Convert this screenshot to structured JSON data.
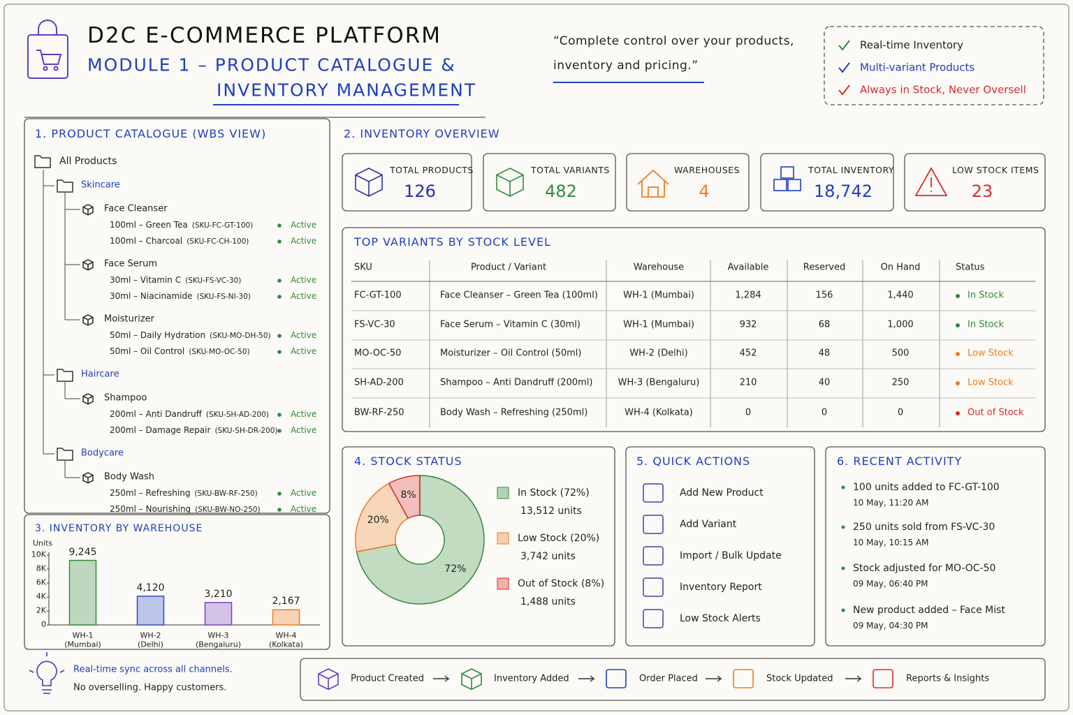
{
  "header": {
    "title": "D2C E-COMMERCE PLATFORM",
    "subtitle_lines": [
      "MODULE 1 – PRODUCT CATALOGUE &",
      "INVENTORY MANAGEMENT"
    ]
  },
  "quote_lines": [
    "“Complete control over your products,",
    "inventory and pricing.”"
  ],
  "features": [
    {
      "text": "Real-time Inventory",
      "check_color": "#2e8b3a",
      "color": "#222222"
    },
    {
      "text": "Multi-variant Products",
      "check_color": "#1f3fbf",
      "color": "#1f3fbf"
    },
    {
      "text": "Always in Stock, Never Oversell",
      "check_color": "#d92b2b",
      "color": "#d92b2b"
    }
  ],
  "catalogue": {
    "title": "1. PRODUCT CATALOGUE (WBS VIEW)",
    "root": "All Products",
    "categories": [
      {
        "name": "Skincare",
        "products": [
          {
            "name": "Face Cleanser",
            "variants": [
              {
                "label": "100ml – Green Tea",
                "sku": "(SKU-FC-GT-100)",
                "status": "Active"
              },
              {
                "label": "100ml – Charcoal",
                "sku": "(SKU-FC-CH-100)",
                "status": "Active"
              }
            ]
          },
          {
            "name": "Face Serum",
            "variants": [
              {
                "label": "30ml – Vitamin C",
                "sku": "(SKU-FS-VC-30)",
                "status": "Active"
              },
              {
                "label": "30ml – Niacinamide",
                "sku": "(SKU-FS-NI-30)",
                "status": "Active"
              }
            ]
          },
          {
            "name": "Moisturizer",
            "variants": [
              {
                "label": "50ml – Daily Hydration",
                "sku": "(SKU-MO-DH-50)",
                "status": "Active"
              },
              {
                "label": "50ml – Oil Control",
                "sku": "(SKU-MO-OC-50)",
                "status": "Active"
              }
            ]
          }
        ]
      },
      {
        "name": "Haircare",
        "products": [
          {
            "name": "Shampoo",
            "variants": [
              {
                "label": "200ml – Anti Dandruff",
                "sku": "(SKU-SH-AD-200)",
                "status": "Active"
              },
              {
                "label": "200ml – Damage Repair",
                "sku": "(SKU-SH-DR-200)",
                "status": "Active"
              }
            ]
          }
        ]
      },
      {
        "name": "Bodycare",
        "products": [
          {
            "name": "Body Wash",
            "variants": [
              {
                "label": "250ml – Refreshing",
                "sku": "(SKU-BW-RF-250)",
                "status": "Active"
              },
              {
                "label": "250ml – Nourishing",
                "sku": "(SKU-BW-NO-250)",
                "status": "Active"
              }
            ]
          }
        ]
      }
    ]
  },
  "overview": {
    "title": "2. INVENTORY OVERVIEW",
    "kpis": [
      {
        "label": "TOTAL PRODUCTS",
        "value": 126,
        "color": "#2b2fa8"
      },
      {
        "label": "TOTAL VARIANTS",
        "value": 482,
        "color": "#2e8b3a"
      },
      {
        "label": "WAREHOUSES",
        "value": 4,
        "color": "#f07b1f"
      },
      {
        "label": "TOTAL INVENTORY",
        "value": "18,742",
        "color": "#1f3fbf"
      },
      {
        "label": "LOW STOCK ITEMS",
        "value": 23,
        "color": "#d92b2b"
      }
    ]
  },
  "stock_table": {
    "title": "TOP VARIANTS BY STOCK LEVEL",
    "columns": [
      "SKU",
      "Product / Variant",
      "Warehouse",
      "Available",
      "Reserved",
      "On Hand",
      "Status"
    ],
    "rows": [
      {
        "cells": [
          "FC-GT-100",
          "Face Cleanser – Green Tea (100ml)",
          "WH-1 (Mumbai)",
          "1,284",
          "156",
          "1,440",
          "In Stock"
        ],
        "status_color": "#2e8b3a"
      },
      {
        "cells": [
          "FS-VC-30",
          "Face Serum – Vitamin C (30ml)",
          "WH-1 (Mumbai)",
          "932",
          "68",
          "1,000",
          "In Stock"
        ],
        "status_color": "#2e8b3a"
      },
      {
        "cells": [
          "MO-OC-50",
          "Moisturizer – Oil Control (50ml)",
          "WH-2 (Delhi)",
          "452",
          "48",
          "500",
          "Low Stock"
        ],
        "status_color": "#f07b1f"
      },
      {
        "cells": [
          "SH-AD-200",
          "Shampoo – Anti Dandruff (200ml)",
          "WH-3 (Bengaluru)",
          "210",
          "40",
          "250",
          "Low Stock"
        ],
        "status_color": "#f07b1f"
      },
      {
        "cells": [
          "BW-RF-250",
          "Body Wash – Refreshing (250ml)",
          "WH-4 (Kolkata)",
          "0",
          "0",
          "0",
          "Out of Stock"
        ],
        "status_color": "#d92b2b"
      }
    ]
  },
  "chart_data": [
    {
      "type": "bar",
      "title": "3. INVENTORY BY WAREHOUSE",
      "y_label": "Units",
      "categories": [
        "WH-1 (Mumbai)",
        "WH-2 (Delhi)",
        "WH-3 (Bengaluru)",
        "WH-4 (Kolkata)"
      ],
      "values": [
        9245,
        4120,
        3210,
        2167
      ],
      "value_labels": [
        "9,245",
        "4,120",
        "3,210",
        "2,167"
      ],
      "colors": [
        "#2e8b3a",
        "#2b4fc7",
        "#7b3fc4",
        "#f07b1f"
      ],
      "ylim": [
        0,
        10000
      ],
      "yticks": [
        0,
        {
          "value": 2000,
          "label": "2K"
        },
        {
          "value": 4000,
          "label": "4K"
        },
        {
          "value": 6000,
          "label": "6K"
        },
        {
          "value": 8000,
          "label": "8K"
        },
        {
          "value": 10000,
          "label": "10K"
        }
      ]
    },
    {
      "type": "pie",
      "title": "4. STOCK STATUS",
      "categories": [
        "In Stock (72%)",
        "Low Stock (20%)",
        "Out of Stock (8%)"
      ],
      "values": [
        72,
        20,
        8
      ],
      "value_labels": [
        "72%",
        "20%",
        "8%"
      ],
      "units": [
        "13,512 units",
        "3,742 units",
        "1,488 units"
      ],
      "colors": [
        "#2e8b3a",
        "#f07b1f",
        "#d92b2b"
      ]
    }
  ],
  "quick_actions": {
    "title": "5. QUICK ACTIONS",
    "items": [
      "Add New Product",
      "Add Variant",
      "Import / Bulk Update",
      "Inventory Report",
      "Low Stock Alerts"
    ]
  },
  "recent_activity": {
    "title": "6. RECENT ACTIVITY",
    "items": [
      {
        "text": "100 units added to FC-GT-100",
        "time": "10 May, 11:20 AM"
      },
      {
        "text": "250 units sold from FS-VC-30",
        "time": "10 May, 10:15 AM"
      },
      {
        "text": "Stock adjusted for MO-OC-50",
        "time": "09 May, 06:40 PM"
      },
      {
        "text": "New product added – Face Mist",
        "time": "09 May, 04:30 PM"
      }
    ]
  },
  "footer": {
    "note_lines": [
      "Real-time sync across all channels.",
      "No overselling. Happy customers."
    ],
    "flow": [
      "Product Created",
      "Inventory Added",
      "Order Placed",
      "Stock Updated",
      "Reports & Insights"
    ]
  }
}
